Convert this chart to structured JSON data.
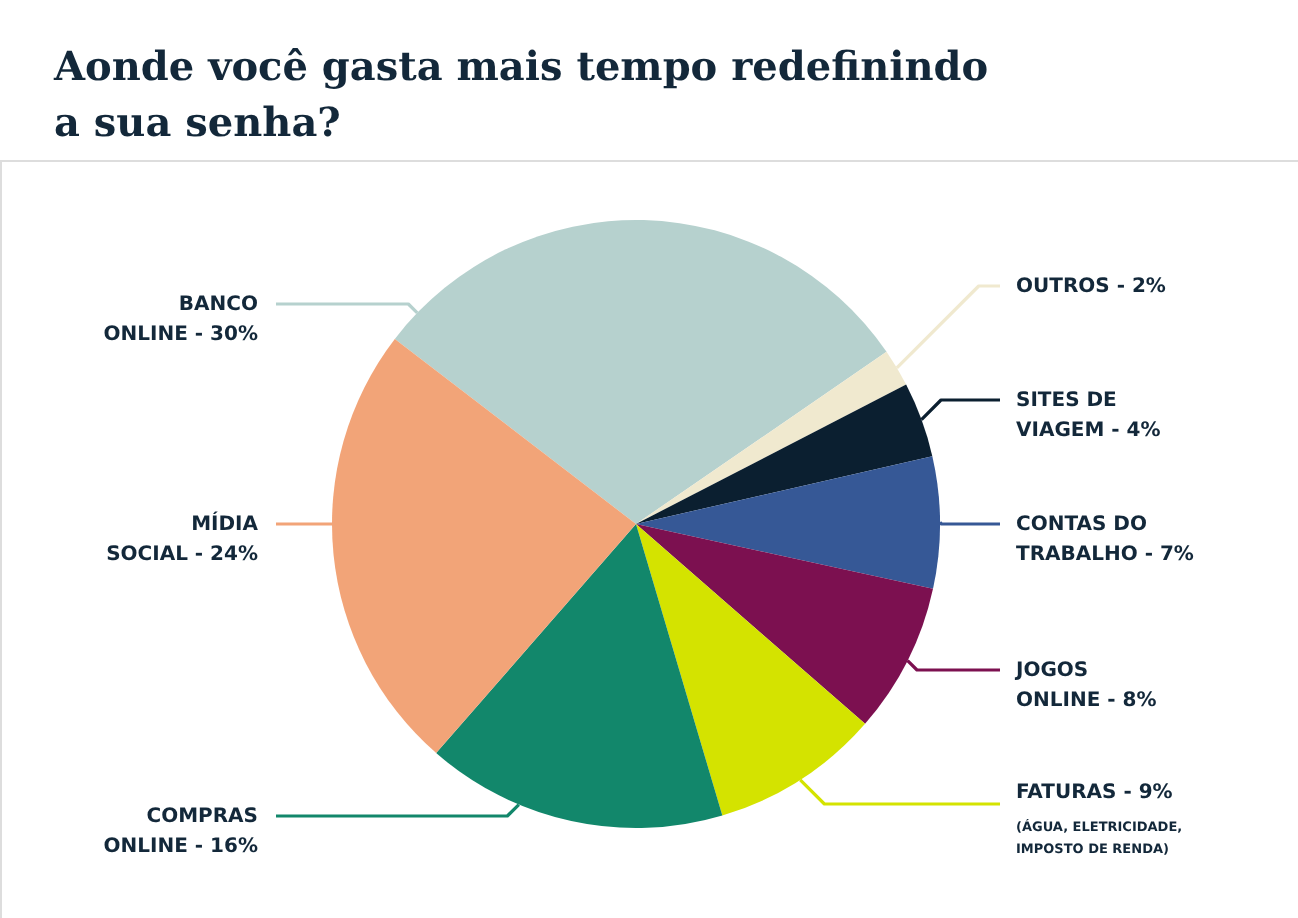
{
  "chart_data": {
    "type": "pie",
    "title": "Aonde você gasta mais tempo redefinindo a sua senha?",
    "categories": [
      "BANCO ONLINE",
      "OUTROS",
      "SITES DE VIAGEM",
      "CONTAS DO TRABALHO",
      "JOGOS ONLINE",
      "FATURAS",
      "COMPRAS ONLINE",
      "MÍDIA SOCIAL"
    ],
    "values": [
      30,
      2,
      4,
      7,
      8,
      9,
      16,
      24
    ],
    "colors": [
      "#b6d1ce",
      "#f0e9cf",
      "#0b1f30",
      "#365896",
      "#7c1050",
      "#d4e300",
      "#12876b",
      "#f2a478"
    ],
    "value_labels": [
      "30%",
      "2%",
      "4%",
      "7%",
      "8%",
      "9%",
      "16%",
      "24%"
    ],
    "annotations": [
      "(ÁGUA, ELETRICIDADE, IMPOSTO DE RENDA)"
    ]
  }
}
